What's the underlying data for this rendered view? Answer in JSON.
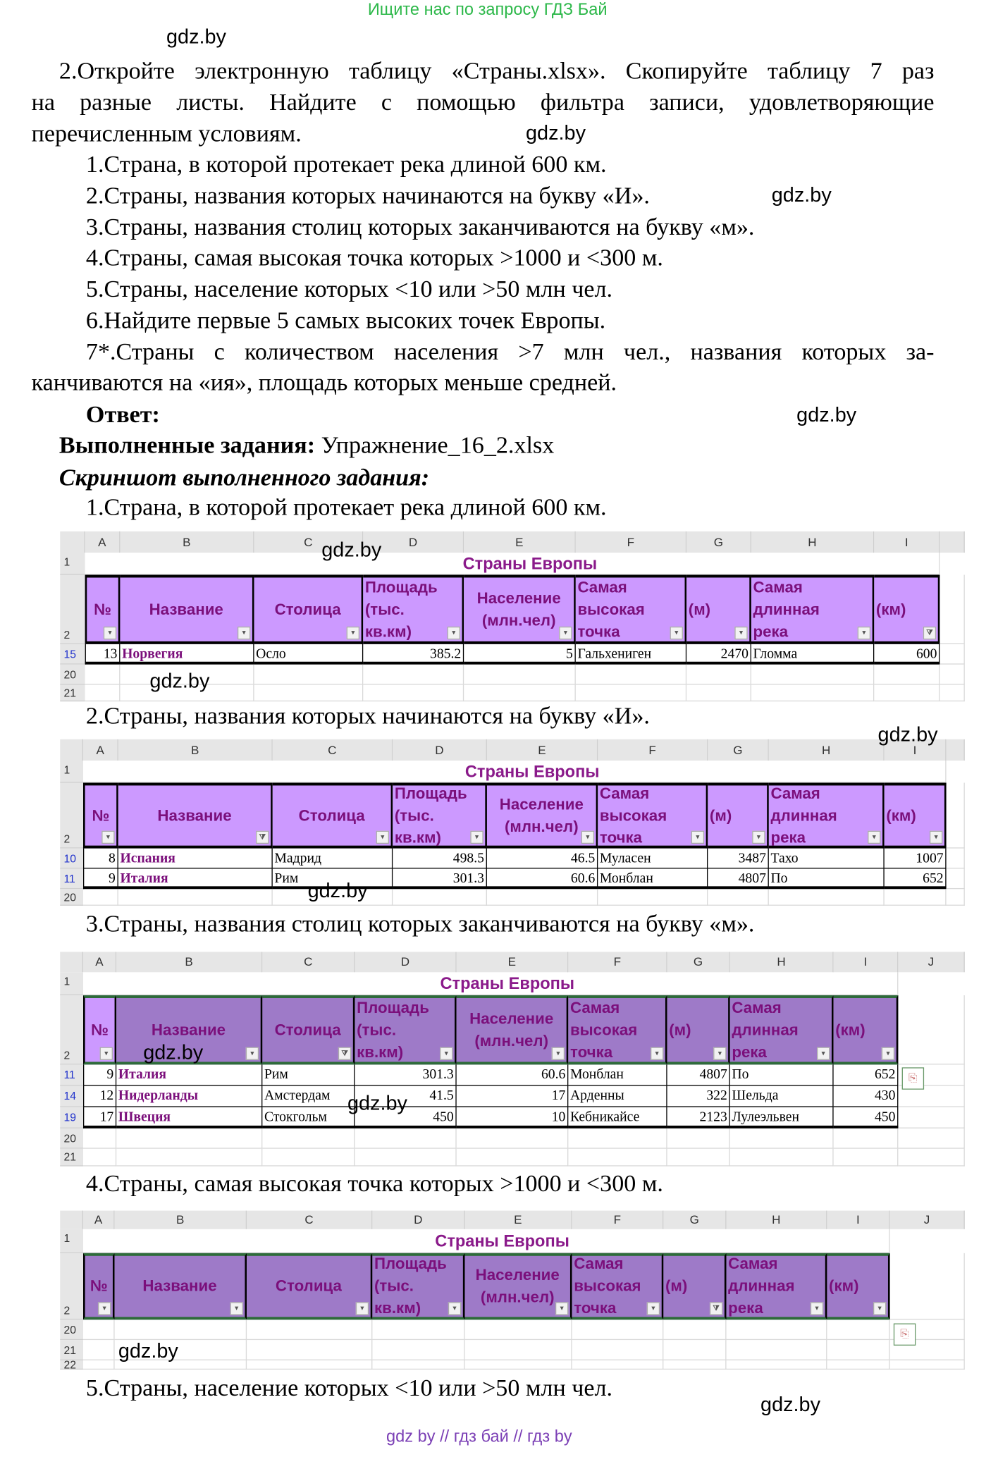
{
  "top_note": "Ищите нас по запросу ГДЗ Бай",
  "watermark": "gdz.by",
  "task": {
    "intro": [
      "2.Откройте электронную таблицу «Страны.xlsx». Скопируйте таблицу 7 раз",
      "на разные листы. Найдите с помощью фильтра записи, удовлетворяющие",
      "перечисленным условиям."
    ],
    "items": [
      "1.Страна, в которой протекает река длиной 600 км.",
      "2.Страны, названия которых начинаются на букву «И».",
      "3.Страны, названия столиц которых заканчиваются на букву «м».",
      "4.Страны, самая высокая точка которых >1000 и <300 м.",
      "5.Страны, население которых <10 или >50 млн чел.",
      "6.Найдите первые 5 самых высоких точек Европы."
    ],
    "item7": [
      "7*.Страны с количеством населения >7 млн чел., названия которых за-",
      "канчиваются на «ия», площадь которых меньше средней."
    ]
  },
  "answer": {
    "label": "Ответ:",
    "done_label": "Выполненные задания:",
    "done_file": "Упражнение_16_2.xlsx",
    "screenshot_label": "Скриншот выполненного задания:"
  },
  "captions": [
    "1.Страна, в которой протекает река длиной 600 км.",
    "2.Страны, названия которых начинаются на букву «И».",
    "3.Страны, названия столиц которых заканчиваются на букву «м».",
    "4.Страны, самая высокая точка которых >1000 и <300 м.",
    "5.Страны, население которых <10 или >50 млн чел."
  ],
  "colors": {
    "header_light": "#cc99ff",
    "header_dark": "#9e7ac8",
    "title": "#8a1a8a",
    "watermark_top": "#2db84a"
  },
  "sheet": {
    "title": "Страны Европы",
    "headers": [
      "№",
      "Название",
      "Столица",
      "Площадь (тыс. кв.км)",
      "Население (млн.чел)",
      "Самая высокая точка",
      "(м)",
      "Самая длинная река",
      "(км)"
    ],
    "header_lines": [
      [
        "№"
      ],
      [
        "Название"
      ],
      [
        "Столица"
      ],
      [
        "Площадь",
        "(тыс.",
        "кв.км)"
      ],
      [
        "Население",
        "(млн.чел)"
      ],
      [
        "Самая",
        "высокая",
        "точка"
      ],
      [
        "(м)"
      ],
      [
        "Самая",
        "длинная",
        "река"
      ],
      [
        "(км)"
      ]
    ]
  },
  "tables": [
    {
      "columns": [
        "A",
        "B",
        "C",
        "D",
        "E",
        "F",
        "G",
        "H",
        "I",
        ""
      ],
      "filter_col": 8,
      "trailing_rows": [
        "20",
        "21"
      ],
      "rows": [
        {
          "n": "15",
          "cells": [
            "13",
            "Норвегия",
            "Осло",
            "385.2",
            "5",
            "Гальхениген",
            "2470",
            "Гломма",
            "600"
          ]
        }
      ]
    },
    {
      "columns": [
        "A",
        "B",
        "C",
        "D",
        "E",
        "F",
        "G",
        "H",
        "I",
        ""
      ],
      "filter_col": 1,
      "trailing_rows": [
        "20"
      ],
      "rows": [
        {
          "n": "10",
          "cells": [
            "8",
            "Испания",
            "Мадрид",
            "498.5",
            "46.5",
            "Муласен",
            "3487",
            "Тахо",
            "1007"
          ]
        },
        {
          "n": "11",
          "cells": [
            "9",
            "Италия",
            "Рим",
            "301.3",
            "60.6",
            "Монблан",
            "4807",
            "По",
            "652"
          ]
        }
      ]
    },
    {
      "columns": [
        "A",
        "B",
        "C",
        "D",
        "E",
        "F",
        "G",
        "H",
        "I",
        "J"
      ],
      "filter_col": 2,
      "trailing_rows": [
        "20",
        "21"
      ],
      "rows": [
        {
          "n": "11",
          "cells": [
            "9",
            "Италия",
            "Рим",
            "301.3",
            "60.6",
            "Монблан",
            "4807",
            "По",
            "652"
          ]
        },
        {
          "n": "14",
          "cells": [
            "12",
            "Нидерланды",
            "Амстердам",
            "41.5",
            "17",
            "Арденны",
            "322",
            "Шельда",
            "430"
          ]
        },
        {
          "n": "19",
          "cells": [
            "17",
            "Швеция",
            "Стокгольм",
            "450",
            "10",
            "Кебникайсе",
            "2123",
            "Лулеэльвен",
            "450"
          ]
        }
      ]
    },
    {
      "columns": [
        "A",
        "B",
        "C",
        "D",
        "E",
        "F",
        "G",
        "H",
        "I",
        "J"
      ],
      "filter_col": 6,
      "trailing_rows": [
        "20",
        "21",
        "22"
      ],
      "rows": []
    }
  ],
  "footer": "gdz by  //  гдз бай  //  гдз by"
}
